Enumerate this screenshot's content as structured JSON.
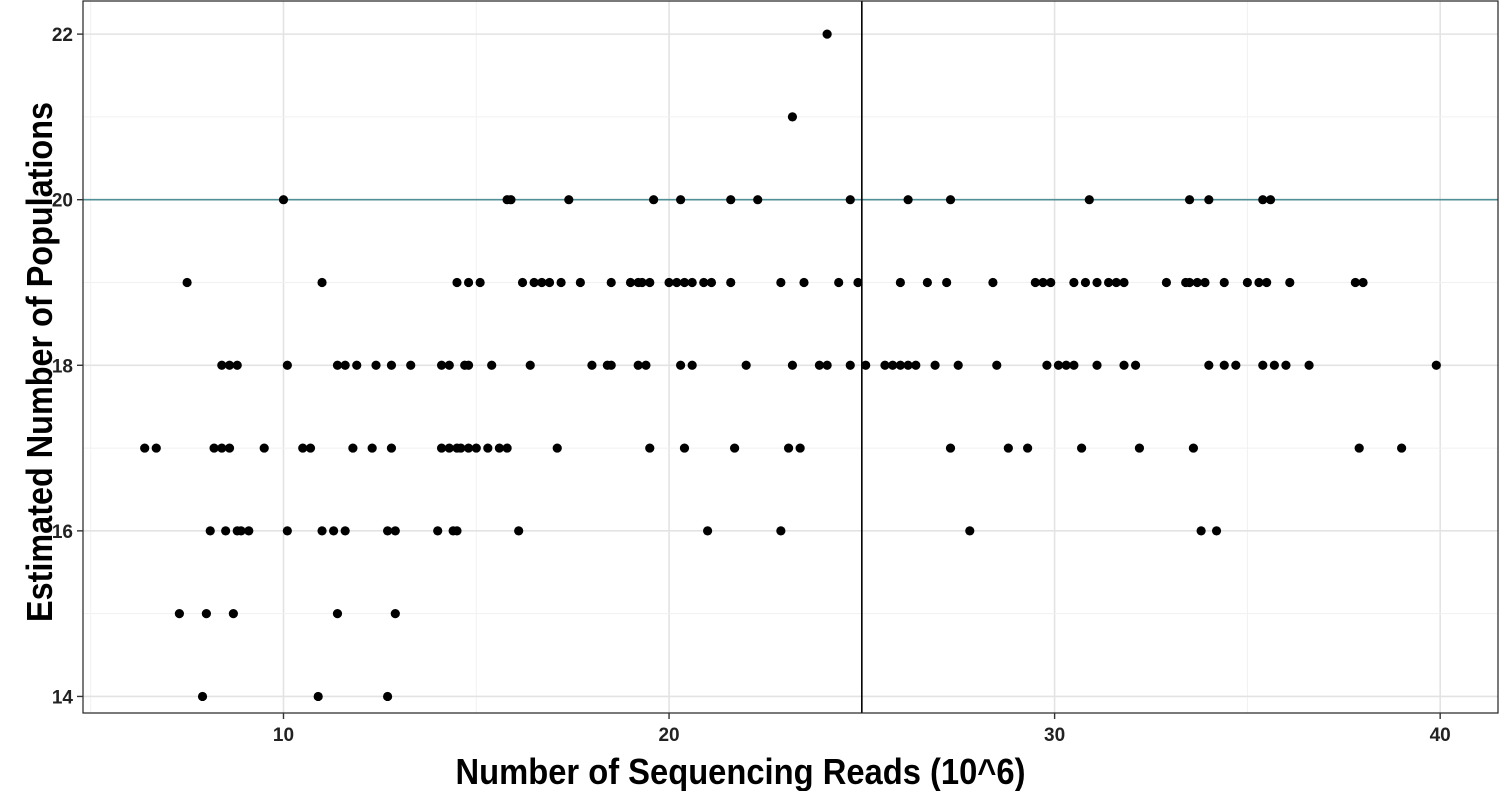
{
  "chart_data": {
    "type": "scatter",
    "title": "",
    "xlabel": "Number of Sequencing Reads (10^6)",
    "ylabel": "Estimated Number of Populations",
    "xlim": [
      4.8,
      41.5
    ],
    "ylim": [
      13.8,
      22.4
    ],
    "x_ticks": [
      10,
      20,
      30,
      40
    ],
    "y_ticks": [
      14,
      16,
      18,
      20,
      22
    ],
    "x_tick_labels": [
      "10",
      "20",
      "30",
      "40"
    ],
    "y_tick_labels": [
      "14",
      "16",
      "18",
      "20",
      "22"
    ],
    "grid": true,
    "legend": "none",
    "reference_lines": {
      "vertical_x": 25.0,
      "horizontal_y": 20,
      "vertical_color": "#000000",
      "horizontal_color": "#4f8f95"
    },
    "point_color": "#000000",
    "points": [
      [
        7.9,
        14
      ],
      [
        10.9,
        14
      ],
      [
        12.7,
        14
      ],
      [
        7.3,
        15
      ],
      [
        8.0,
        15
      ],
      [
        8.7,
        15
      ],
      [
        11.4,
        15
      ],
      [
        12.9,
        15
      ],
      [
        8.1,
        16
      ],
      [
        8.5,
        16
      ],
      [
        8.8,
        16
      ],
      [
        8.9,
        16
      ],
      [
        9.1,
        16
      ],
      [
        10.1,
        16
      ],
      [
        11.0,
        16
      ],
      [
        11.3,
        16
      ],
      [
        11.6,
        16
      ],
      [
        12.7,
        16
      ],
      [
        12.9,
        16
      ],
      [
        14.0,
        16
      ],
      [
        14.4,
        16
      ],
      [
        14.5,
        16
      ],
      [
        16.1,
        16
      ],
      [
        21.0,
        16
      ],
      [
        22.9,
        16
      ],
      [
        27.8,
        16
      ],
      [
        33.8,
        16
      ],
      [
        34.2,
        16
      ],
      [
        6.4,
        17
      ],
      [
        6.7,
        17
      ],
      [
        8.2,
        17
      ],
      [
        8.4,
        17
      ],
      [
        8.6,
        17
      ],
      [
        9.5,
        17
      ],
      [
        10.5,
        17
      ],
      [
        10.7,
        17
      ],
      [
        11.8,
        17
      ],
      [
        12.3,
        17
      ],
      [
        12.8,
        17
      ],
      [
        14.1,
        17
      ],
      [
        14.3,
        17
      ],
      [
        14.5,
        17
      ],
      [
        14.6,
        17
      ],
      [
        14.8,
        17
      ],
      [
        15.0,
        17
      ],
      [
        15.3,
        17
      ],
      [
        15.6,
        17
      ],
      [
        15.8,
        17
      ],
      [
        17.1,
        17
      ],
      [
        19.5,
        17
      ],
      [
        20.4,
        17
      ],
      [
        21.7,
        17
      ],
      [
        23.1,
        17
      ],
      [
        23.4,
        17
      ],
      [
        27.3,
        17
      ],
      [
        28.8,
        17
      ],
      [
        29.3,
        17
      ],
      [
        30.7,
        17
      ],
      [
        32.2,
        17
      ],
      [
        33.6,
        17
      ],
      [
        37.9,
        17
      ],
      [
        39.0,
        17
      ],
      [
        8.4,
        18
      ],
      [
        8.6,
        18
      ],
      [
        8.8,
        18
      ],
      [
        10.1,
        18
      ],
      [
        11.4,
        18
      ],
      [
        11.6,
        18
      ],
      [
        11.9,
        18
      ],
      [
        12.4,
        18
      ],
      [
        12.8,
        18
      ],
      [
        13.3,
        18
      ],
      [
        14.1,
        18
      ],
      [
        14.3,
        18
      ],
      [
        14.7,
        18
      ],
      [
        14.8,
        18
      ],
      [
        15.4,
        18
      ],
      [
        16.4,
        18
      ],
      [
        18.0,
        18
      ],
      [
        18.4,
        18
      ],
      [
        18.5,
        18
      ],
      [
        19.2,
        18
      ],
      [
        19.4,
        18
      ],
      [
        20.3,
        18
      ],
      [
        20.6,
        18
      ],
      [
        22.0,
        18
      ],
      [
        23.2,
        18
      ],
      [
        23.9,
        18
      ],
      [
        24.1,
        18
      ],
      [
        24.7,
        18
      ],
      [
        25.1,
        18
      ],
      [
        25.6,
        18
      ],
      [
        25.8,
        18
      ],
      [
        26.0,
        18
      ],
      [
        26.2,
        18
      ],
      [
        26.4,
        18
      ],
      [
        26.9,
        18
      ],
      [
        27.5,
        18
      ],
      [
        28.5,
        18
      ],
      [
        29.8,
        18
      ],
      [
        30.1,
        18
      ],
      [
        30.3,
        18
      ],
      [
        30.5,
        18
      ],
      [
        31.1,
        18
      ],
      [
        31.8,
        18
      ],
      [
        32.1,
        18
      ],
      [
        34.0,
        18
      ],
      [
        34.4,
        18
      ],
      [
        34.7,
        18
      ],
      [
        35.4,
        18
      ],
      [
        35.7,
        18
      ],
      [
        36.0,
        18
      ],
      [
        36.6,
        18
      ],
      [
        39.9,
        18
      ],
      [
        7.5,
        19
      ],
      [
        11.0,
        19
      ],
      [
        14.5,
        19
      ],
      [
        14.8,
        19
      ],
      [
        15.1,
        19
      ],
      [
        16.2,
        19
      ],
      [
        16.5,
        19
      ],
      [
        16.7,
        19
      ],
      [
        16.9,
        19
      ],
      [
        17.2,
        19
      ],
      [
        17.7,
        19
      ],
      [
        18.5,
        19
      ],
      [
        19.0,
        19
      ],
      [
        19.2,
        19
      ],
      [
        19.3,
        19
      ],
      [
        19.5,
        19
      ],
      [
        20.0,
        19
      ],
      [
        20.2,
        19
      ],
      [
        20.4,
        19
      ],
      [
        20.6,
        19
      ],
      [
        20.9,
        19
      ],
      [
        21.1,
        19
      ],
      [
        21.6,
        19
      ],
      [
        22.9,
        19
      ],
      [
        23.5,
        19
      ],
      [
        24.4,
        19
      ],
      [
        24.9,
        19
      ],
      [
        26.0,
        19
      ],
      [
        26.7,
        19
      ],
      [
        27.2,
        19
      ],
      [
        28.4,
        19
      ],
      [
        29.5,
        19
      ],
      [
        29.7,
        19
      ],
      [
        29.9,
        19
      ],
      [
        30.5,
        19
      ],
      [
        30.8,
        19
      ],
      [
        31.1,
        19
      ],
      [
        31.4,
        19
      ],
      [
        31.6,
        19
      ],
      [
        31.8,
        19
      ],
      [
        32.9,
        19
      ],
      [
        33.4,
        19
      ],
      [
        33.5,
        19
      ],
      [
        33.7,
        19
      ],
      [
        33.9,
        19
      ],
      [
        34.4,
        19
      ],
      [
        35.0,
        19
      ],
      [
        35.3,
        19
      ],
      [
        35.5,
        19
      ],
      [
        36.1,
        19
      ],
      [
        37.8,
        19
      ],
      [
        38.0,
        19
      ],
      [
        10.0,
        20
      ],
      [
        15.8,
        20
      ],
      [
        15.9,
        20
      ],
      [
        17.4,
        20
      ],
      [
        19.6,
        20
      ],
      [
        20.3,
        20
      ],
      [
        21.6,
        20
      ],
      [
        22.3,
        20
      ],
      [
        24.7,
        20
      ],
      [
        26.2,
        20
      ],
      [
        27.3,
        20
      ],
      [
        30.9,
        20
      ],
      [
        33.5,
        20
      ],
      [
        34.0,
        20
      ],
      [
        35.4,
        20
      ],
      [
        35.6,
        20
      ],
      [
        23.2,
        21
      ],
      [
        24.1,
        22
      ]
    ]
  }
}
